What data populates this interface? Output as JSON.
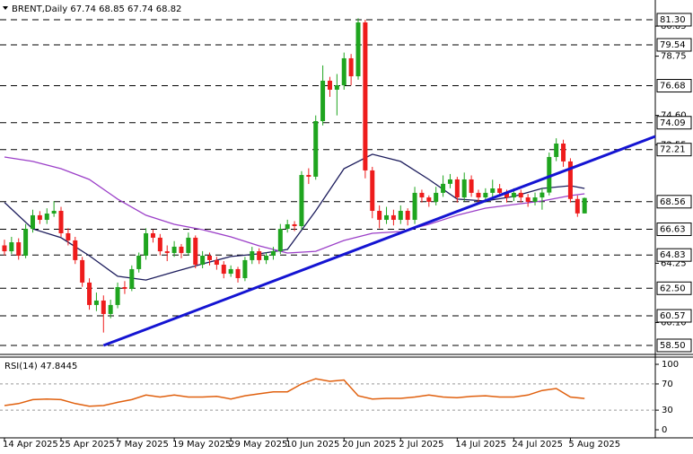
{
  "chart_data": [
    {
      "type": "candlestick",
      "title": "BRENT,Daily  67.74 68.85 67.74 68.82",
      "categories": [
        "14 Apr 2025",
        null,
        null,
        null,
        null,
        null,
        null,
        null,
        "25 Apr 2025",
        null,
        null,
        null,
        null,
        null,
        null,
        null,
        "7 May 2025",
        null,
        null,
        null,
        null,
        null,
        null,
        null,
        "19 May 2025",
        null,
        null,
        null,
        null,
        null,
        null,
        null,
        "29 May 2025",
        null,
        null,
        null,
        null,
        null,
        null,
        null,
        "10 Jun 2025",
        null,
        null,
        null,
        null,
        null,
        null,
        null,
        "20 Jun 2025",
        null,
        null,
        null,
        null,
        null,
        null,
        null,
        "2 Jul 2025",
        null,
        null,
        null,
        null,
        null,
        null,
        null,
        "14 Jul 2025",
        null,
        null,
        null,
        null,
        null,
        null,
        null,
        "24 Jul 2025",
        null,
        null,
        null,
        null,
        null,
        null,
        null,
        "5 Aug 2025",
        null,
        null
      ],
      "open": [
        65.5,
        65.09,
        65.72,
        64.78,
        66.66,
        67.61,
        67.29,
        67.73,
        67.92,
        66.35,
        65.85,
        64.47,
        62.9,
        61.33,
        61.64,
        60.7,
        61.33,
        62.58,
        62.46,
        63.84,
        64.78,
        66.35,
        66.04,
        65.09,
        64.97,
        65.41,
        64.97,
        66.04,
        64.15,
        64.78,
        64.47,
        64.15,
        63.52,
        63.84,
        63.21,
        64.47,
        65.09,
        64.47,
        64.78,
        65.09,
        66.66,
        66.98,
        66.85,
        70.43,
        70.31,
        74.2,
        77.03,
        76.4,
        76.71,
        78.6,
        77.34,
        81.11,
        70.75,
        67.92,
        67.29,
        67.61,
        67.29,
        67.92,
        67.29,
        69.18,
        68.86,
        68.55,
        69.18,
        69.81,
        70.12,
        68.86,
        70.12,
        69.18,
        68.86,
        69.18,
        69.49,
        69.18,
        68.86,
        69.18,
        68.86,
        68.55,
        68.86,
        69.2,
        71.69,
        72.63,
        71.38,
        68.75,
        67.74
      ],
      "high": [
        65.9,
        66.1,
        66.0,
        67.0,
        68.0,
        67.9,
        68.1,
        68.6,
        68.2,
        66.7,
        66.1,
        64.7,
        63.2,
        62.2,
        62.0,
        61.7,
        62.9,
        63.0,
        64.1,
        65.0,
        66.7,
        66.6,
        66.3,
        65.5,
        65.8,
        65.6,
        66.4,
        66.2,
        65.1,
        65.0,
        64.7,
        64.4,
        64.1,
        64.0,
        64.7,
        65.4,
        65.3,
        65.0,
        65.4,
        67.0,
        67.3,
        67.2,
        70.7,
        70.9,
        74.6,
        78.1,
        77.3,
        77.5,
        79.0,
        78.9,
        81.4,
        81.3,
        71.0,
        68.3,
        68.2,
        68.0,
        68.3,
        68.1,
        69.6,
        69.4,
        69.0,
        69.6,
        70.4,
        70.5,
        70.3,
        70.6,
        70.4,
        69.4,
        69.5,
        70.1,
        69.8,
        69.4,
        69.5,
        69.4,
        69.1,
        69.2,
        69.5,
        72.0,
        73.0,
        72.9,
        71.6,
        69.0,
        68.85
      ],
      "low": [
        64.8,
        64.9,
        64.5,
        64.6,
        66.4,
        67.0,
        67.0,
        67.5,
        66.1,
        65.5,
        64.2,
        62.6,
        61.0,
        60.9,
        59.4,
        60.4,
        61.1,
        62.1,
        62.3,
        63.6,
        64.5,
        65.7,
        64.8,
        64.4,
        64.7,
        64.6,
        64.8,
        63.9,
        63.9,
        64.1,
        63.8,
        63.2,
        63.3,
        62.9,
        63.0,
        64.2,
        64.2,
        64.2,
        64.5,
        64.9,
        66.4,
        66.5,
        66.6,
        69.8,
        70.1,
        73.9,
        75.9,
        74.6,
        76.4,
        76.7,
        77.1,
        70.2,
        67.4,
        66.7,
        67.0,
        66.9,
        67.0,
        66.9,
        67.0,
        68.5,
        68.2,
        68.3,
        68.9,
        69.5,
        68.5,
        68.6,
        68.9,
        68.5,
        68.5,
        68.9,
        68.9,
        68.5,
        68.6,
        68.5,
        68.2,
        68.3,
        68.0,
        69.0,
        71.4,
        71.0,
        68.5,
        67.5,
        67.74
      ],
      "close": [
        65.09,
        65.72,
        64.78,
        66.66,
        67.61,
        67.29,
        67.73,
        67.92,
        66.35,
        65.85,
        64.47,
        62.9,
        61.33,
        61.64,
        60.7,
        61.33,
        62.58,
        62.46,
        63.84,
        64.78,
        66.35,
        66.04,
        65.09,
        64.97,
        65.41,
        64.97,
        66.04,
        64.15,
        64.78,
        64.47,
        64.15,
        63.52,
        63.84,
        63.21,
        64.47,
        65.09,
        64.47,
        64.78,
        65.09,
        66.66,
        66.98,
        66.85,
        70.43,
        70.31,
        74.2,
        77.03,
        76.4,
        76.71,
        78.6,
        77.34,
        81.11,
        70.75,
        67.92,
        67.29,
        67.61,
        67.29,
        67.92,
        67.29,
        69.18,
        68.86,
        68.55,
        69.18,
        69.81,
        70.12,
        68.86,
        70.12,
        69.18,
        68.86,
        69.18,
        69.49,
        69.18,
        68.86,
        69.18,
        68.86,
        68.55,
        68.86,
        69.2,
        71.69,
        72.63,
        71.38,
        68.75,
        67.74,
        68.82
      ],
      "up_color": "#1fa51f",
      "down_color": "#ee1c1c",
      "xlim": [
        -0.63,
        92
      ],
      "ylim": [
        57.87,
        82.68
      ],
      "yticks": [
        80.85,
        78.75,
        {
          "value": 74.6,
          "label": "74.60"
        },
        72.55,
        64.25,
        {
          "value": 60.1,
          "label": "60.10"
        }
      ],
      "levels": [
        {
          "value": 81.3,
          "label": "81.30"
        },
        79.54,
        76.68,
        74.09,
        72.21,
        68.56,
        66.63,
        64.83,
        {
          "value": 62.5,
          "label": "62.50"
        },
        60.57,
        {
          "value": 58.5,
          "label": "58.50"
        }
      ],
      "lines": [
        {
          "color": "#1c1c5c",
          "x": [
            0,
            4,
            8,
            12,
            16,
            20,
            24,
            28,
            32,
            36,
            40,
            44,
            48,
            52,
            56,
            60,
            64,
            68,
            72,
            76,
            80,
            82
          ],
          "values": [
            68.51,
            66.66,
            66.04,
            64.78,
            63.34,
            63.08,
            63.65,
            64.21,
            64.72,
            64.91,
            65.22,
            67.92,
            70.87,
            71.88,
            71.38,
            70.12,
            68.74,
            68.61,
            68.93,
            69.49,
            69.68,
            69.49
          ]
        },
        {
          "color": "#9b3fc8",
          "x": [
            0,
            4,
            8,
            12,
            16,
            20,
            24,
            28,
            32,
            36,
            40,
            44,
            48,
            52,
            56,
            60,
            64,
            68,
            72,
            76,
            80,
            82
          ],
          "values": [
            71.69,
            71.38,
            70.87,
            70.12,
            68.74,
            67.61,
            66.98,
            66.6,
            66.1,
            65.47,
            64.97,
            65.09,
            65.85,
            66.35,
            66.47,
            66.98,
            67.61,
            68.11,
            68.36,
            68.61,
            68.99,
            69.11
          ]
        }
      ],
      "trendline": {
        "color": "#1414d2",
        "x": [
          14,
          92
        ],
        "values": [
          58.5,
          73.13
        ]
      }
    },
    {
      "type": "line",
      "title": "RSI(14) 47.8445",
      "color": "#e0600e",
      "x": [
        0,
        2,
        4,
        6,
        8,
        10,
        12,
        14,
        16,
        18,
        20,
        22,
        24,
        26,
        28,
        30,
        32,
        34,
        36,
        38,
        40,
        42,
        44,
        46,
        48,
        50,
        52,
        54,
        56,
        58,
        60,
        62,
        64,
        66,
        68,
        70,
        72,
        74,
        76,
        78,
        80,
        82
      ],
      "values": [
        37,
        40,
        46,
        47,
        46,
        40,
        36,
        37,
        42,
        46,
        53,
        50,
        53,
        50,
        50,
        51,
        47,
        52,
        55,
        58,
        58,
        70,
        78,
        74,
        76,
        52,
        47,
        48,
        48,
        50,
        53,
        50,
        49,
        51,
        52,
        50,
        50,
        53,
        60,
        63,
        50,
        47.8445
      ],
      "xlim": [
        -0.63,
        92
      ],
      "ylim": [
        -12.3,
        111
      ],
      "yticks": [
        100,
        70,
        30,
        0
      ],
      "levels": [
        70,
        30
      ]
    }
  ]
}
